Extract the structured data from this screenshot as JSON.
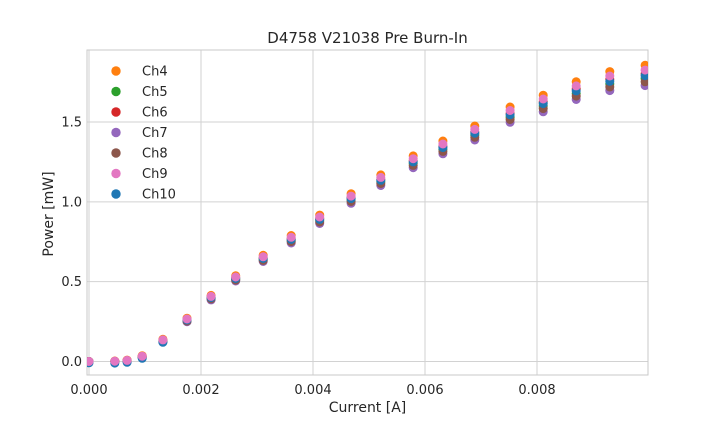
{
  "style": {
    "background": "#ffffff",
    "grid_color": "#d2d2d2",
    "spine_color": "#c9c9c9",
    "text_color": "#262626"
  },
  "chart_data": {
    "type": "scatter",
    "title": "D4758 V21038 Pre Burn-In",
    "xlabel": "Current [A]",
    "ylabel": "Power [mW]",
    "xlim": [
      -3.57e-05,
      0.0099821
    ],
    "ylim": [
      -0.0846,
      1.951
    ],
    "grid": true,
    "legend_position": "upper left",
    "xticks": {
      "values": [
        0,
        0.002,
        0.004,
        0.006,
        0.008
      ],
      "labels": [
        "0.000",
        "0.002",
        "0.004",
        "0.006",
        "0.008"
      ]
    },
    "yticks": {
      "values": [
        0,
        0.5,
        1.0,
        1.5
      ],
      "labels": [
        "0.0",
        "0.5",
        "1.0",
        "1.5"
      ]
    },
    "x": [
      0.0,
      0.00046,
      0.00068,
      0.00095,
      0.00132,
      0.00175,
      0.00218,
      0.00262,
      0.00311,
      0.00361,
      0.00412,
      0.00468,
      0.00521,
      0.00579,
      0.00632,
      0.00689,
      0.00752,
      0.00811,
      0.0087,
      0.0093,
      0.00993
    ],
    "series": [
      {
        "name": "Ch4",
        "color": "#ff7f0e",
        "values": [
          0.0,
          0.003,
          0.009,
          0.036,
          0.139,
          0.271,
          0.414,
          0.537,
          0.665,
          0.789,
          0.917,
          1.051,
          1.169,
          1.288,
          1.381,
          1.475,
          1.594,
          1.668,
          1.752,
          1.816,
          1.855
        ]
      },
      {
        "name": "Ch5",
        "color": "#2ca02c",
        "values": [
          0.0,
          0.0,
          0.004,
          0.028,
          0.128,
          0.257,
          0.396,
          0.515,
          0.639,
          0.758,
          0.883,
          1.012,
          1.126,
          1.24,
          1.329,
          1.418,
          1.531,
          1.6,
          1.679,
          1.738,
          1.772
        ]
      },
      {
        "name": "Ch6",
        "color": "#d62728",
        "values": [
          0.0,
          0.001,
          0.006,
          0.031,
          0.132,
          0.262,
          0.403,
          0.523,
          0.649,
          0.769,
          0.895,
          1.026,
          1.141,
          1.257,
          1.348,
          1.438,
          1.554,
          1.625,
          1.706,
          1.766,
          1.802
        ]
      },
      {
        "name": "Ch7",
        "color": "#9467bd",
        "values": [
          0.0,
          0.0,
          0.001,
          0.024,
          0.122,
          0.249,
          0.386,
          0.504,
          0.626,
          0.742,
          0.864,
          0.991,
          1.102,
          1.214,
          1.301,
          1.387,
          1.498,
          1.564,
          1.641,
          1.697,
          1.728
        ]
      },
      {
        "name": "Ch8",
        "color": "#8c564b",
        "values": [
          0.0,
          0.0,
          0.002,
          0.026,
          0.125,
          0.253,
          0.392,
          0.51,
          0.633,
          0.751,
          0.874,
          1.002,
          1.115,
          1.228,
          1.316,
          1.404,
          1.516,
          1.584,
          1.662,
          1.719,
          1.752
        ]
      },
      {
        "name": "Ch9",
        "color": "#e377c2",
        "values": [
          0.0,
          0.002,
          0.007,
          0.033,
          0.135,
          0.266,
          0.408,
          0.529,
          0.656,
          0.778,
          0.905,
          1.036,
          1.153,
          1.27,
          1.362,
          1.454,
          1.572,
          1.644,
          1.726,
          1.788,
          1.825
        ]
      },
      {
        "name": "Ch10",
        "color": "#1f77b4",
        "values": [
          -0.008,
          -0.01,
          -0.005,
          0.02,
          0.12,
          0.26,
          0.4,
          0.52,
          0.645,
          0.765,
          0.89,
          1.02,
          1.135,
          1.25,
          1.34,
          1.43,
          1.545,
          1.615,
          1.695,
          1.755,
          1.79
        ]
      }
    ],
    "draw_order": [
      "Ch4",
      "Ch5",
      "Ch6",
      "Ch7",
      "Ch8",
      "Ch10",
      "Ch9"
    ]
  }
}
